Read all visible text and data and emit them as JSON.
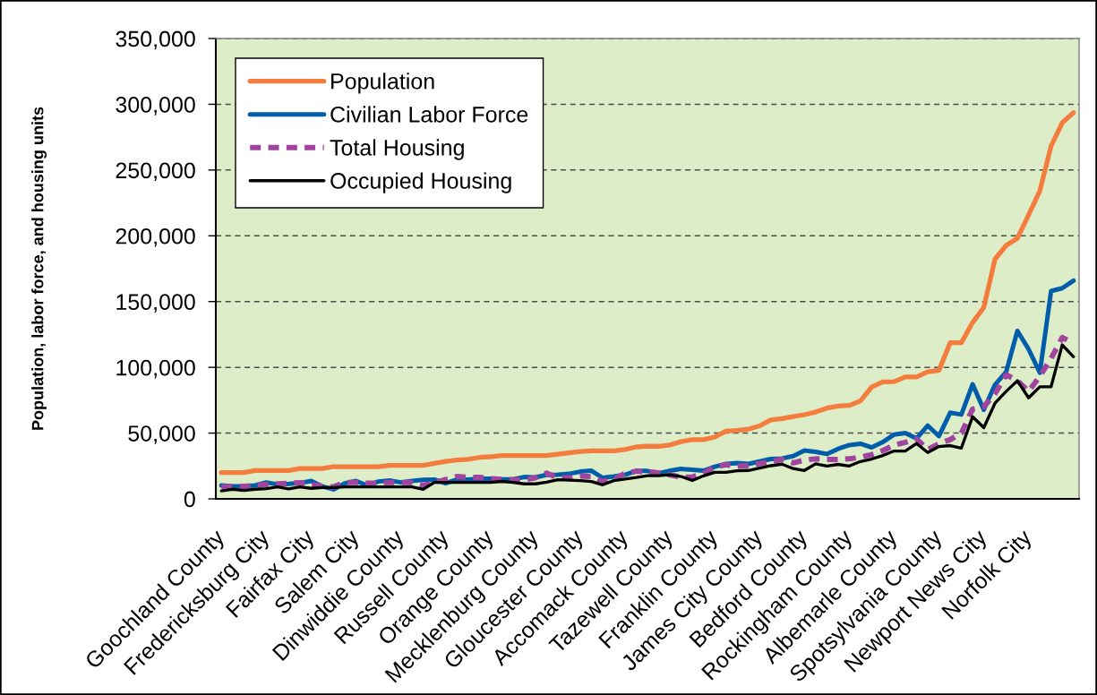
{
  "chart_data": {
    "type": "line",
    "ylabel": "Population, labor force, and housing units",
    "categories": [
      "Goochland County",
      null,
      null,
      null,
      "Fredericksburg City",
      null,
      null,
      null,
      "Fairfax City",
      null,
      null,
      null,
      "Salem City",
      null,
      null,
      null,
      "Dinwiddie County",
      null,
      null,
      null,
      "Russell County",
      null,
      null,
      null,
      "Orange County",
      null,
      null,
      null,
      "Mecklenburg County",
      null,
      null,
      null,
      "Gloucester County",
      null,
      null,
      null,
      "Accomack County",
      null,
      null,
      null,
      "Tazewell County",
      null,
      null,
      null,
      "Franklin County",
      null,
      null,
      null,
      "James City County",
      null,
      null,
      null,
      "Bedford County",
      null,
      null,
      null,
      "Rockingham County",
      null,
      null,
      null,
      "Albemarle County",
      null,
      null,
      null,
      "Spotsylvania County",
      null,
      null,
      null,
      "Newport News City",
      null,
      null,
      null,
      "Norfolk City",
      null,
      null,
      null,
      null
    ],
    "series": [
      {
        "name": "Population",
        "color": "#f47c3c",
        "line_style": "solid",
        "values": [
          20000,
          20000,
          20000,
          21500,
          21500,
          21500,
          21500,
          23000,
          23000,
          23000,
          24500,
          24500,
          24500,
          24500,
          24500,
          25500,
          25500,
          25500,
          25500,
          27000,
          28500,
          29500,
          30000,
          31500,
          32000,
          33000,
          33000,
          33000,
          33000,
          33000,
          34000,
          35000,
          36000,
          36500,
          36500,
          36500,
          37500,
          39500,
          40000,
          40000,
          41000,
          43500,
          45000,
          45000,
          47000,
          51500,
          52000,
          53000,
          55500,
          60000,
          61000,
          62500,
          64000,
          66000,
          69000,
          70500,
          71000,
          74500,
          85000,
          89000,
          89100,
          92700,
          92700,
          96600,
          97700,
          118700,
          118700,
          134100,
          145500,
          182300,
          192700,
          198200,
          215900,
          234100,
          268200,
          286000,
          293700
        ]
      },
      {
        "name": "Civilian Labor Force",
        "color": "#005daa",
        "line_style": "solid",
        "values": [
          10200,
          9500,
          9500,
          10200,
          12500,
          11000,
          11400,
          12000,
          13600,
          9500,
          7200,
          11800,
          13600,
          10200,
          13200,
          14000,
          12500,
          13600,
          14500,
          14700,
          11800,
          14700,
          14700,
          15400,
          15400,
          15000,
          14800,
          16600,
          16300,
          18200,
          18400,
          19000,
          20700,
          21400,
          16000,
          17000,
          18300,
          21200,
          21200,
          19500,
          21400,
          22800,
          22100,
          21400,
          24400,
          26600,
          27300,
          26600,
          28400,
          30300,
          30700,
          32500,
          36800,
          35800,
          34100,
          38000,
          40900,
          41900,
          39100,
          43200,
          48900,
          50000,
          45900,
          55700,
          47700,
          65500,
          64100,
          87100,
          67700,
          86800,
          96600,
          127700,
          113700,
          95900,
          158000,
          160200,
          165900
        ]
      },
      {
        "name": "Total Housing",
        "color": "#a044a0",
        "line_style": "dashed",
        "values": [
          9100,
          9500,
          9500,
          10200,
          11000,
          11400,
          11800,
          12300,
          11000,
          9500,
          9100,
          12500,
          12500,
          12000,
          12000,
          12500,
          12500,
          12300,
          10200,
          12500,
          14700,
          17000,
          16400,
          16400,
          15400,
          14800,
          14400,
          14400,
          16000,
          19500,
          16000,
          16000,
          17300,
          16900,
          13200,
          14800,
          19500,
          21000,
          20500,
          19800,
          18200,
          16600,
          16600,
          19500,
          24000,
          26000,
          24900,
          25400,
          26800,
          28400,
          30000,
          27300,
          29500,
          30400,
          30000,
          30000,
          30400,
          31800,
          33600,
          36800,
          40900,
          43000,
          45500,
          37500,
          42000,
          45000,
          50000,
          68200,
          70000,
          80000,
          94300,
          89800,
          81800,
          93200,
          106800,
          122700,
          118200
        ]
      },
      {
        "name": "Occupied Housing",
        "color": "#000000",
        "line_style": "solid",
        "values": [
          6100,
          7300,
          6400,
          7300,
          7700,
          9100,
          7500,
          9100,
          8000,
          8600,
          8600,
          9100,
          9100,
          9100,
          9100,
          9100,
          9100,
          9100,
          7300,
          12500,
          12500,
          12500,
          12500,
          12500,
          12500,
          13300,
          12500,
          11400,
          11400,
          12700,
          14600,
          14200,
          13900,
          13200,
          10700,
          13900,
          15000,
          16200,
          17600,
          17600,
          18300,
          17000,
          14000,
          17500,
          20200,
          20200,
          21400,
          21600,
          23400,
          25200,
          26400,
          23000,
          21600,
          26600,
          25000,
          26200,
          25000,
          28400,
          30300,
          33000,
          36400,
          36400,
          42100,
          35200,
          39800,
          40500,
          38600,
          62500,
          54100,
          72700,
          81800,
          89800,
          76800,
          85200,
          85200,
          117100,
          108000
        ]
      }
    ],
    "ylim": [
      0,
      350000
    ],
    "yticks": [
      0,
      {
        "value": 50000,
        "label": "50,000"
      },
      {
        "value": 100000,
        "label": "100,000"
      },
      {
        "value": 150000,
        "label": "150,000"
      },
      {
        "value": 200000,
        "label": "200,000"
      },
      {
        "value": 250000,
        "label": "250,000"
      },
      {
        "value": 300000,
        "label": "300,000"
      },
      {
        "value": 350000,
        "label": "350,000"
      }
    ],
    "grid": "y",
    "legend": "top left"
  }
}
